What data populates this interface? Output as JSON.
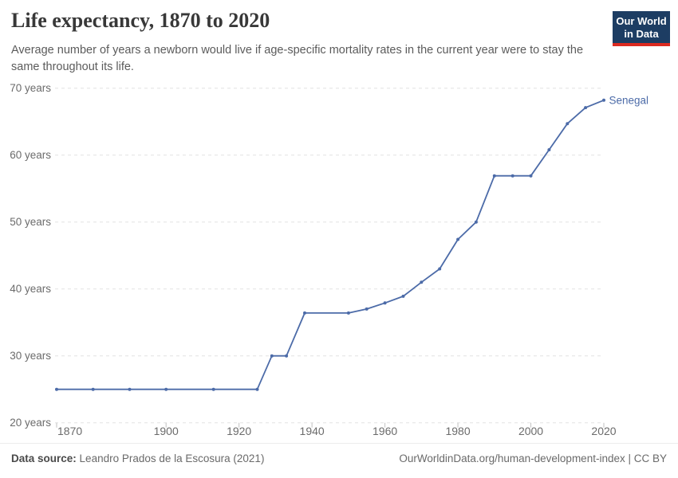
{
  "header": {
    "title": "Life expectancy, 1870 to 2020",
    "subtitle": "Average number of years a newborn would live if age-specific mortality rates in the current year were to stay the same throughout its life.",
    "logo_line1": "Our World",
    "logo_line2": "in Data",
    "logo_bg_color": "#1d3d63",
    "logo_accent_color": "#dc2a20"
  },
  "chart_data": {
    "type": "line",
    "title": "Life expectancy, 1870 to 2020",
    "xlabel": "",
    "ylabel": "",
    "xlim": [
      1870,
      2020
    ],
    "ylim": [
      20,
      70
    ],
    "grid": "horizontal-dashed",
    "legend_position": "end-of-line-label",
    "series": [
      {
        "name": "Senegal",
        "color": "#4c6ba8",
        "x": [
          1870,
          1880,
          1890,
          1900,
          1913,
          1925,
          1929,
          1933,
          1938,
          1950,
          1955,
          1960,
          1965,
          1970,
          1975,
          1980,
          1985,
          1990,
          1995,
          2000,
          2005,
          2010,
          2015,
          2020
        ],
        "values": [
          25,
          25,
          25,
          25,
          25,
          25,
          30,
          30,
          36.4,
          36.4,
          37,
          37.9,
          38.9,
          41,
          43,
          47.4,
          50,
          56.9,
          56.9,
          56.9,
          60.8,
          64.7,
          67.1,
          68.2
        ]
      }
    ],
    "x_ticks": [
      {
        "value": 1870,
        "label": "1870"
      },
      {
        "value": 1900,
        "label": "1900"
      },
      {
        "value": 1920,
        "label": "1920"
      },
      {
        "value": 1940,
        "label": "1940"
      },
      {
        "value": 1960,
        "label": "1960"
      },
      {
        "value": 1980,
        "label": "1980"
      },
      {
        "value": 2000,
        "label": "2000"
      },
      {
        "value": 2020,
        "label": "2020"
      }
    ],
    "y_ticks": [
      {
        "value": 20,
        "label": "20 years"
      },
      {
        "value": 30,
        "label": "30 years"
      },
      {
        "value": 40,
        "label": "40 years"
      },
      {
        "value": 50,
        "label": "50 years"
      },
      {
        "value": 60,
        "label": "60 years"
      },
      {
        "value": 70,
        "label": "70 years"
      }
    ],
    "colors": {
      "grid": "#e2e2e2",
      "tick": "#c2c2c2",
      "axis_text": "#6b6b6b",
      "line": "#4c6ba8"
    }
  },
  "footer": {
    "source_label": "Data source:",
    "source_value": "Leandro Prados de la Escosura (2021)",
    "attribution": "OurWorldinData.org/human-development-index | CC BY"
  }
}
